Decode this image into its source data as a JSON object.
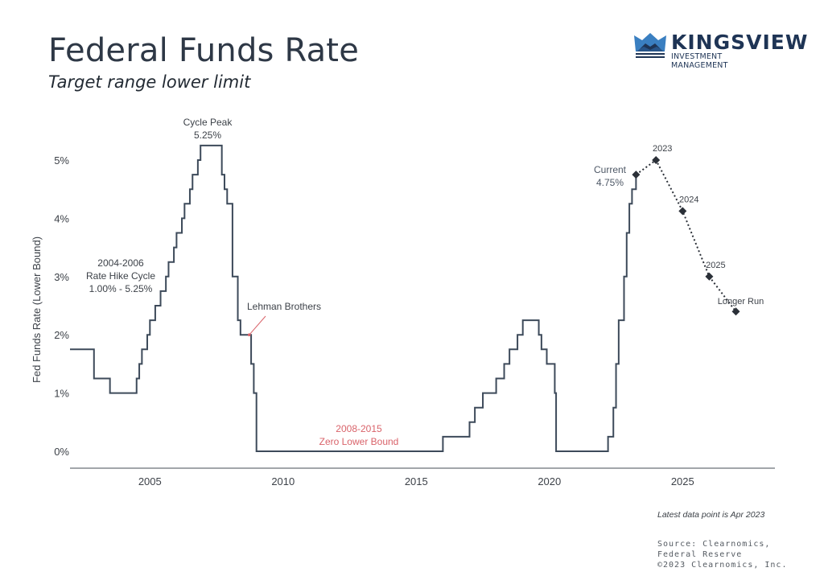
{
  "header": {
    "title": "Federal Funds Rate",
    "subtitle": "Target range lower limit"
  },
  "logo": {
    "name": "KINGSVIEW",
    "tagline": "INVESTMENT MANAGEMENT",
    "icon": "crown-icon",
    "colors": {
      "primary": "#1e3455",
      "accent": "#2f6fad"
    }
  },
  "footer": {
    "note": "Latest data point is Apr 2023",
    "source_lines": [
      "Source: Clearnomics,",
      "Federal Reserve",
      "©2023 Clearnomics, Inc."
    ]
  },
  "chart_data": {
    "type": "line",
    "title": "Federal Funds Rate",
    "subtitle": "Target range lower limit",
    "xlabel": "",
    "ylabel": "Fed Funds Rate (Lower Bound)",
    "xlim": [
      2002,
      2028.5
    ],
    "ylim": [
      -0.3,
      5.6
    ],
    "x_ticks": [
      2005,
      2010,
      2015,
      2020,
      2025
    ],
    "x_tick_labels": [
      "2005",
      "2010",
      "2015",
      "2020",
      "2025"
    ],
    "y_ticks": [
      0,
      1,
      2,
      3,
      4,
      5
    ],
    "y_tick_labels": [
      "0%",
      "1%",
      "2%",
      "3%",
      "4%",
      "5%"
    ],
    "grid": false,
    "colors": {
      "line": "#3d4a5a",
      "projection": "#2b3038",
      "annotation_red": "#d9636a",
      "text": "#3c4148"
    },
    "series": [
      {
        "name": "Fed Funds Rate (Lower Bound)",
        "style": "step",
        "points": [
          [
            2002.0,
            1.75
          ],
          [
            2002.9,
            1.25
          ],
          [
            2003.5,
            1.0
          ],
          [
            2004.5,
            1.25
          ],
          [
            2004.6,
            1.5
          ],
          [
            2004.7,
            1.75
          ],
          [
            2004.9,
            2.0
          ],
          [
            2005.0,
            2.25
          ],
          [
            2005.2,
            2.5
          ],
          [
            2005.4,
            2.75
          ],
          [
            2005.6,
            3.0
          ],
          [
            2005.7,
            3.25
          ],
          [
            2005.9,
            3.5
          ],
          [
            2006.0,
            3.75
          ],
          [
            2006.2,
            4.0
          ],
          [
            2006.3,
            4.25
          ],
          [
            2006.5,
            4.5
          ],
          [
            2006.6,
            4.75
          ],
          [
            2006.8,
            5.0
          ],
          [
            2006.9,
            5.25
          ],
          [
            2007.7,
            4.75
          ],
          [
            2007.8,
            4.5
          ],
          [
            2007.9,
            4.25
          ],
          [
            2008.1,
            3.5
          ],
          [
            2008.1,
            3.0
          ],
          [
            2008.3,
            2.25
          ],
          [
            2008.4,
            2.0
          ],
          [
            2008.8,
            1.5
          ],
          [
            2008.9,
            1.0
          ],
          [
            2009.0,
            0.0
          ],
          [
            2016.0,
            0.25
          ],
          [
            2017.0,
            0.5
          ],
          [
            2017.2,
            0.75
          ],
          [
            2017.5,
            1.0
          ],
          [
            2018.0,
            1.25
          ],
          [
            2018.3,
            1.5
          ],
          [
            2018.5,
            1.75
          ],
          [
            2018.8,
            2.0
          ],
          [
            2019.0,
            2.25
          ],
          [
            2019.6,
            2.0
          ],
          [
            2019.7,
            1.75
          ],
          [
            2019.9,
            1.5
          ],
          [
            2020.2,
            1.0
          ],
          [
            2020.25,
            0.0
          ],
          [
            2022.2,
            0.25
          ],
          [
            2022.4,
            0.75
          ],
          [
            2022.5,
            1.5
          ],
          [
            2022.6,
            2.25
          ],
          [
            2022.8,
            3.0
          ],
          [
            2022.9,
            3.75
          ],
          [
            2023.0,
            4.25
          ],
          [
            2023.1,
            4.5
          ],
          [
            2023.25,
            4.75
          ]
        ],
        "end_x": 2023.3
      },
      {
        "name": "Projections",
        "style": "dotted",
        "labels": [
          "Current",
          "2023",
          "2024",
          "2025",
          "Longer Run"
        ],
        "x": [
          2023.25,
          2024.0,
          2025.0,
          2026.0,
          2027.0
        ],
        "values": [
          4.75,
          5.0,
          4.125,
          3.0,
          2.4
        ]
      }
    ],
    "annotations": [
      {
        "lines": [
          "Cycle Peak",
          "5.25%"
        ],
        "x": 2007.2,
        "y": 5.25,
        "color": "dark"
      },
      {
        "lines": [
          "2004-2006",
          "Rate Hike Cycle",
          "1.00% - 5.25%"
        ],
        "x": 2004.2,
        "y": 3.0,
        "color": "dark"
      },
      {
        "lines": [
          "Lehman Brothers"
        ],
        "x": 2009.7,
        "y": 2.5,
        "color": "dark",
        "pointer": [
          2008.7,
          2.0
        ]
      },
      {
        "lines": [
          "2008-2015",
          "Zero Lower Bound"
        ],
        "x": 2012.3,
        "y": 0.3,
        "color": "red"
      },
      {
        "lines": [
          "Current",
          "4.75%"
        ],
        "x": 2022.3,
        "y": 4.75,
        "color": "slate"
      }
    ]
  }
}
